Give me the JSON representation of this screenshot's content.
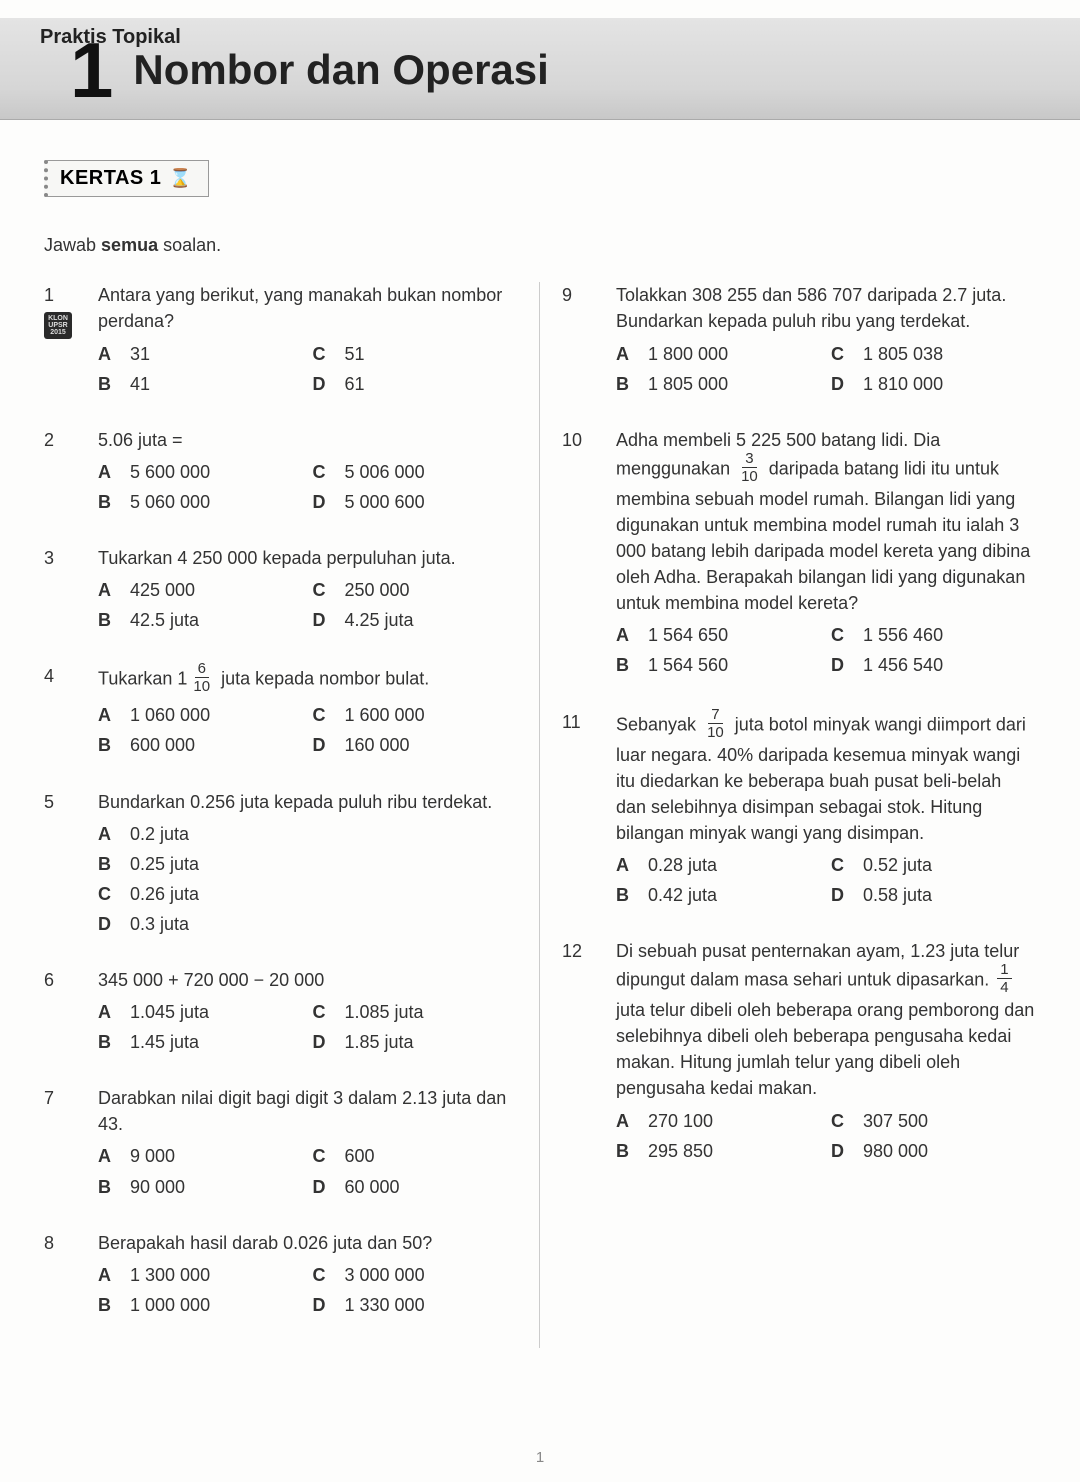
{
  "header": {
    "praktis": "Praktis Topikal",
    "chapter_num": "1",
    "chapter_title": "Nombor dan Operasi"
  },
  "kertas_label": "KERTAS 1",
  "instruction_pre": "Jawab ",
  "instruction_bold": "semua",
  "instruction_post": " soalan.",
  "page_number": "1",
  "klon_badge": "KLON UPSR 2015",
  "questions_left": [
    {
      "num": "1",
      "has_klon": true,
      "text_html": "Antara yang berikut, yang manakah bukan nombor perdana?",
      "layout": "two",
      "opts": [
        {
          "l": "A",
          "v": "31"
        },
        {
          "l": "C",
          "v": "51"
        },
        {
          "l": "B",
          "v": "41"
        },
        {
          "l": "D",
          "v": "61"
        }
      ]
    },
    {
      "num": "2",
      "text_html": "5.06 juta =",
      "layout": "two",
      "opts": [
        {
          "l": "A",
          "v": "5 600 000"
        },
        {
          "l": "C",
          "v": "5 006 000"
        },
        {
          "l": "B",
          "v": "5 060 000"
        },
        {
          "l": "D",
          "v": "5 000 600"
        }
      ]
    },
    {
      "num": "3",
      "text_html": "Tukarkan 4 250 000 kepada perpuluhan juta.",
      "layout": "two",
      "opts": [
        {
          "l": "A",
          "v": "425 000"
        },
        {
          "l": "C",
          "v": "250 000"
        },
        {
          "l": "B",
          "v": "42.5 juta"
        },
        {
          "l": "D",
          "v": "4.25 juta"
        }
      ]
    },
    {
      "num": "4",
      "text_html": "Tukarkan 1<span class='frac'><span class='num'>6</span><span class='den'>10</span></span> juta kepada nombor bulat.",
      "layout": "two",
      "opts": [
        {
          "l": "A",
          "v": "1 060 000"
        },
        {
          "l": "C",
          "v": "1 600 000"
        },
        {
          "l": "B",
          "v": "600 000"
        },
        {
          "l": "D",
          "v": "160 000"
        }
      ]
    },
    {
      "num": "5",
      "text_html": "Bundarkan 0.256 juta kepada puluh ribu terdekat.",
      "layout": "one",
      "opts": [
        {
          "l": "A",
          "v": "0.2 juta"
        },
        {
          "l": "B",
          "v": "0.25 juta"
        },
        {
          "l": "C",
          "v": "0.26 juta"
        },
        {
          "l": "D",
          "v": "0.3 juta"
        }
      ]
    },
    {
      "num": "6",
      "text_html": "345 000 + 720 000 − 20 000",
      "layout": "two",
      "opts": [
        {
          "l": "A",
          "v": "1.045 juta"
        },
        {
          "l": "C",
          "v": "1.085 juta"
        },
        {
          "l": "B",
          "v": "1.45 juta"
        },
        {
          "l": "D",
          "v": "1.85 juta"
        }
      ]
    },
    {
      "num": "7",
      "text_html": "Darabkan nilai digit bagi digit 3 dalam 2.13 juta dan 43.",
      "layout": "two",
      "opts": [
        {
          "l": "A",
          "v": "9 000"
        },
        {
          "l": "C",
          "v": "600"
        },
        {
          "l": "B",
          "v": "90 000"
        },
        {
          "l": "D",
          "v": "60 000"
        }
      ]
    },
    {
      "num": "8",
      "text_html": "Berapakah hasil darab 0.026 juta dan 50?",
      "layout": "two",
      "opts": [
        {
          "l": "A",
          "v": "1 300 000"
        },
        {
          "l": "C",
          "v": "3 000 000"
        },
        {
          "l": "B",
          "v": "1 000 000"
        },
        {
          "l": "D",
          "v": "1 330 000"
        }
      ]
    }
  ],
  "questions_right": [
    {
      "num": "9",
      "text_html": "Tolakkan 308 255 dan 586 707 daripada 2.7 juta. Bundarkan kepada puluh ribu yang terdekat.",
      "layout": "two",
      "opts": [
        {
          "l": "A",
          "v": "1 800 000"
        },
        {
          "l": "C",
          "v": "1 805 038"
        },
        {
          "l": "B",
          "v": "1 805 000"
        },
        {
          "l": "D",
          "v": "1 810 000"
        }
      ]
    },
    {
      "num": "10",
      "text_html": "Adha membeli 5 225 500 batang lidi. Dia menggunakan <span class='frac'><span class='num'>3</span><span class='den'>10</span></span> daripada batang lidi itu untuk membina sebuah model rumah. Bilangan lidi yang digunakan untuk membina model rumah itu ialah 3 000 batang lebih daripada model kereta yang dibina oleh Adha. Berapakah bilangan lidi yang digunakan untuk membina model kereta?",
      "layout": "two",
      "opts": [
        {
          "l": "A",
          "v": "1 564 650"
        },
        {
          "l": "C",
          "v": "1 556 460"
        },
        {
          "l": "B",
          "v": "1 564 560"
        },
        {
          "l": "D",
          "v": "1 456 540"
        }
      ]
    },
    {
      "num": "11",
      "text_html": "Sebanyak <span class='frac'><span class='num'>7</span><span class='den'>10</span></span> juta botol minyak wangi diimport dari luar negara. 40% daripada kesemua minyak wangi itu diedarkan ke beberapa buah pusat beli-belah dan selebihnya disimpan sebagai stok. Hitung bilangan minyak wangi yang disimpan.",
      "layout": "two",
      "opts": [
        {
          "l": "A",
          "v": "0.28 juta"
        },
        {
          "l": "C",
          "v": "0.52 juta"
        },
        {
          "l": "B",
          "v": "0.42 juta"
        },
        {
          "l": "D",
          "v": "0.58 juta"
        }
      ]
    },
    {
      "num": "12",
      "text_html": "Di sebuah pusat penternakan ayam, 1.23 juta telur dipungut dalam masa sehari untuk dipasarkan. <span class='frac'><span class='num'>1</span><span class='den'>4</span></span> juta telur dibeli oleh beberapa orang pemborong dan selebihnya dibeli oleh beberapa pengusaha kedai makan. Hitung jumlah telur yang dibeli oleh pengusaha kedai makan.",
      "layout": "two",
      "opts": [
        {
          "l": "A",
          "v": "270 100"
        },
        {
          "l": "C",
          "v": "307 500"
        },
        {
          "l": "B",
          "v": "295 850"
        },
        {
          "l": "D",
          "v": "980 000"
        }
      ]
    }
  ]
}
